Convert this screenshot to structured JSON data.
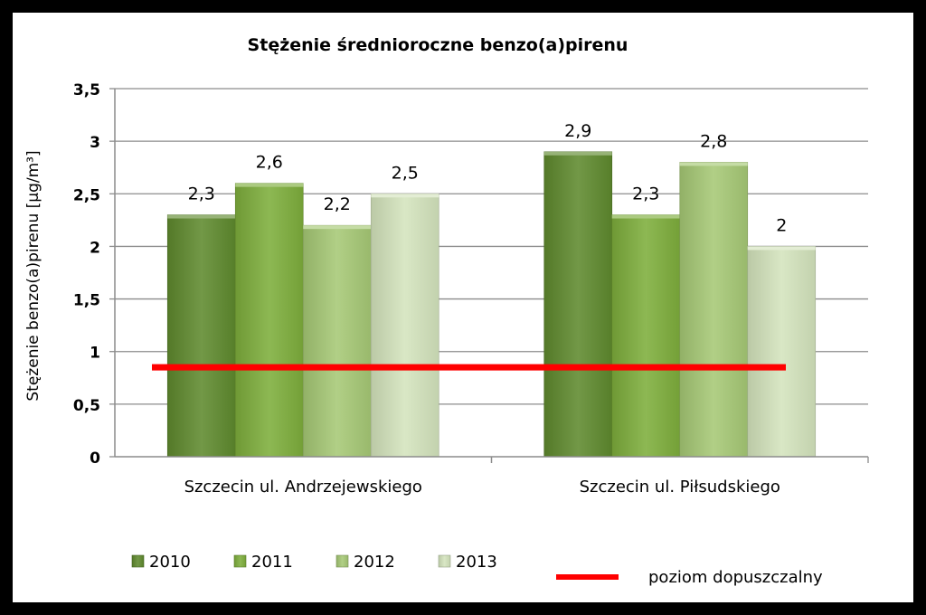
{
  "chart_data": {
    "type": "bar",
    "title": "Stężenie średnioroczne benzo(a)pirenu",
    "ylabel": "Stężenie benzo(a)pirenu [μg/m³]",
    "xlabel": "",
    "categories": [
      "Szczecin ul. Andrzejewskiego",
      "Szczecin ul. Piłsudskiego"
    ],
    "ylim": [
      0,
      3.5
    ],
    "yticks": [
      0,
      0.5,
      1,
      1.5,
      2,
      2.5,
      3,
      3.5
    ],
    "ytick_labels": [
      "0",
      "0,5",
      "1",
      "1,5",
      "2",
      "2,5",
      "3",
      "3,5"
    ],
    "series": [
      {
        "name": "2010",
        "values": [
          2.3,
          2.9
        ],
        "labels": [
          "2,3",
          "2,9"
        ],
        "color": "#5f8a2e"
      },
      {
        "name": "2011",
        "values": [
          2.6,
          2.3
        ],
        "labels": [
          "2,6",
          "2,3"
        ],
        "color": "#7eae3c"
      },
      {
        "name": "2012",
        "values": [
          2.2,
          2.8
        ],
        "labels": [
          "2,2",
          "2,8"
        ],
        "color": "#a6c975"
      },
      {
        "name": "2013",
        "values": [
          2.5,
          2.0
        ],
        "labels": [
          "2,5",
          "2"
        ],
        "color": "#d4e4bd"
      }
    ],
    "reference_line": {
      "name": "poziom  dopuszczalny",
      "value": 0.85,
      "color": "#ff0000"
    },
    "grid": true,
    "legend": "bottom"
  }
}
